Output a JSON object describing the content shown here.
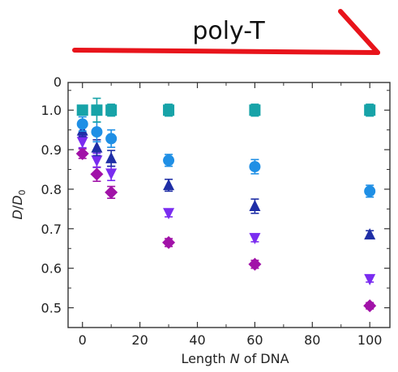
{
  "banner": {
    "label": "poly-T",
    "arrow_color": "#e8141b"
  },
  "chart_data": {
    "type": "scatter",
    "xlabel": "Length N of DNA",
    "ylabel": "D/D0",
    "xlim": [
      -5,
      107
    ],
    "ylim": [
      0.45,
      1.07
    ],
    "x_ticks": [
      0,
      20,
      40,
      60,
      80,
      100
    ],
    "y_ticks": [
      0.5,
      0.6,
      0.7,
      0.8,
      0.9,
      1.0
    ],
    "y_tick_labels": [
      "0.5",
      "0.6",
      "0.7",
      "0.8",
      "0.9",
      "1.0"
    ],
    "top_cut_tick_label": "0",
    "grid": false,
    "series": [
      {
        "marker": "square",
        "color": "#17a3a8",
        "points": [
          {
            "x": 0,
            "y": 1.0,
            "err": 0.012
          },
          {
            "x": 5,
            "y": 1.0,
            "err": 0.03
          },
          {
            "x": 10,
            "y": 1.0,
            "err": 0.015
          },
          {
            "x": 30,
            "y": 1.0,
            "err": 0.015
          },
          {
            "x": 60,
            "y": 1.0,
            "err": 0.015
          },
          {
            "x": 100,
            "y": 1.0,
            "err": 0.015
          }
        ]
      },
      {
        "marker": "circle",
        "color": "#1f8fe5",
        "points": [
          {
            "x": 0,
            "y": 0.965,
            "err": 0.018
          },
          {
            "x": 5,
            "y": 0.945,
            "err": 0.025
          },
          {
            "x": 10,
            "y": 0.928,
            "err": 0.022
          },
          {
            "x": 30,
            "y": 0.873,
            "err": 0.015
          },
          {
            "x": 60,
            "y": 0.857,
            "err": 0.018
          },
          {
            "x": 100,
            "y": 0.795,
            "err": 0.015
          }
        ]
      },
      {
        "marker": "triangle-up",
        "color": "#1f2ea6",
        "points": [
          {
            "x": 0,
            "y": 0.948,
            "err": 0.015
          },
          {
            "x": 5,
            "y": 0.905,
            "err": 0.02
          },
          {
            "x": 10,
            "y": 0.878,
            "err": 0.02
          },
          {
            "x": 30,
            "y": 0.81,
            "err": 0.015
          },
          {
            "x": 60,
            "y": 0.757,
            "err": 0.018
          },
          {
            "x": 100,
            "y": 0.685,
            "err": 0.01
          }
        ]
      },
      {
        "marker": "triangle-down",
        "color": "#7a2cf0",
        "points": [
          {
            "x": 0,
            "y": 0.92,
            "err": 0.015
          },
          {
            "x": 5,
            "y": 0.873,
            "err": 0.018
          },
          {
            "x": 10,
            "y": 0.84,
            "err": 0.018
          },
          {
            "x": 30,
            "y": 0.74,
            "err": 0.01
          },
          {
            "x": 60,
            "y": 0.677,
            "err": 0.01
          },
          {
            "x": 100,
            "y": 0.573,
            "err": 0.008
          }
        ]
      },
      {
        "marker": "diamond",
        "color": "#a112a8",
        "points": [
          {
            "x": 0,
            "y": 0.89,
            "err": 0.012
          },
          {
            "x": 5,
            "y": 0.838,
            "err": 0.018
          },
          {
            "x": 10,
            "y": 0.792,
            "err": 0.015
          },
          {
            "x": 30,
            "y": 0.665,
            "err": 0.01
          },
          {
            "x": 60,
            "y": 0.61,
            "err": 0.01
          },
          {
            "x": 100,
            "y": 0.505,
            "err": 0.008
          }
        ]
      }
    ]
  }
}
